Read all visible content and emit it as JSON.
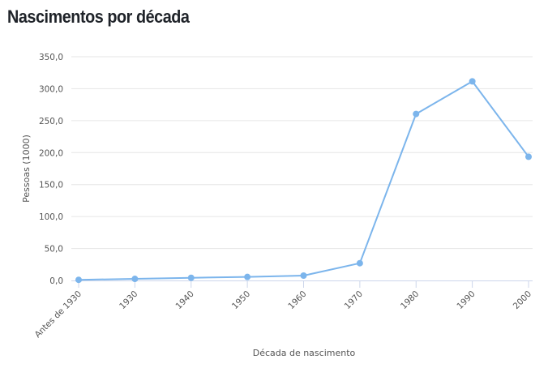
{
  "chart_data": {
    "type": "line",
    "title": "Nascimentos por década",
    "xlabel": "Década de nascimento",
    "ylabel": "Pessoas (1000)",
    "categories": [
      "Antes de 1930",
      "1930",
      "1940",
      "1950",
      "1960",
      "1970",
      "1980",
      "1990",
      "2000"
    ],
    "series": [
      {
        "values": [
          1.0,
          2.5,
          4.2,
          5.5,
          7.6,
          27.0,
          260.5,
          311.5,
          193.5
        ]
      }
    ],
    "ylim": [
      0,
      350
    ],
    "yticks": [
      "0,0",
      "50,0",
      "100,0",
      "150,0",
      "200,0",
      "250,0",
      "300,0",
      "350,0"
    ],
    "grid": true,
    "legend": "none",
    "color": "#7cb5ec"
  }
}
